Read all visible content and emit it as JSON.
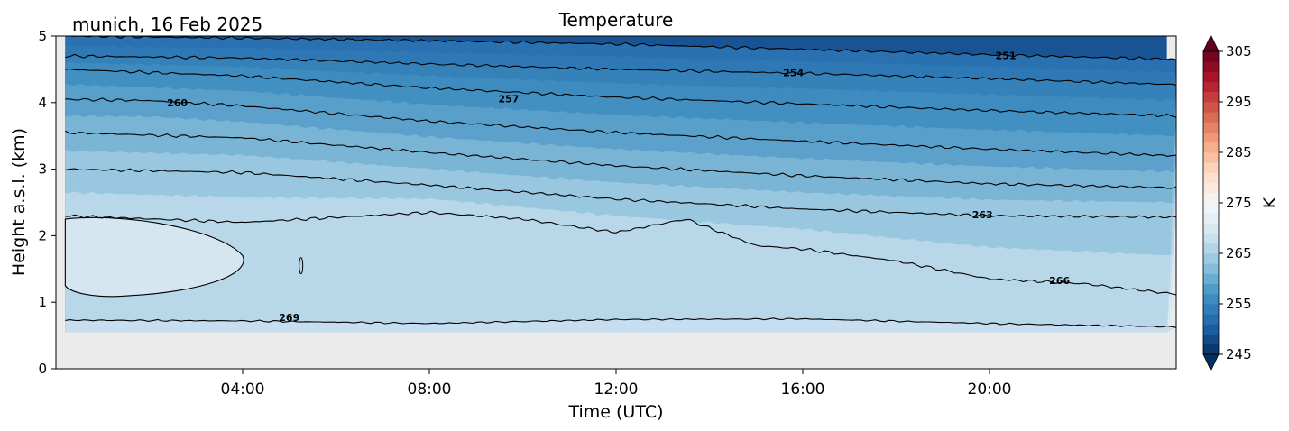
{
  "chart_data": {
    "type": "heatmap",
    "title": "Temperature",
    "subtitle": "munich, 16 Feb 2025",
    "xlabel": "Time (UTC)",
    "ylabel": "Height a.s.l. (km)",
    "xlim": [
      0,
      24
    ],
    "ylim": [
      0,
      5
    ],
    "x_ticks": [
      4,
      8,
      12,
      16,
      20
    ],
    "x_tick_labels": [
      "04:00",
      "08:00",
      "12:00",
      "16:00",
      "20:00"
    ],
    "y_ticks": [
      0,
      1,
      2,
      3,
      4,
      5
    ],
    "y_tick_labels": [
      "0",
      "1",
      "2",
      "3",
      "4",
      "5"
    ],
    "data_bottom_km": 0.55,
    "colorbar": {
      "label": "K",
      "range": [
        245,
        305
      ],
      "step": 2,
      "extend": "both",
      "ticks": [
        245,
        255,
        265,
        275,
        285,
        295,
        305
      ],
      "tick_labels": [
        "245",
        "255",
        "265",
        "275",
        "285",
        "295",
        "305"
      ],
      "colormap": "RdBu_r"
    },
    "contour_levels": [
      251,
      254,
      257,
      260,
      263,
      266,
      269
    ],
    "contour_labels": [
      {
        "text": "251",
        "x_hours": 20.35,
        "height_km": 4.71
      },
      {
        "text": "254",
        "x_hours": 15.8,
        "height_km": 4.45
      },
      {
        "text": "257",
        "x_hours": 9.7,
        "height_km": 4.06
      },
      {
        "text": "260",
        "x_hours": 2.6,
        "height_km": 4.0
      },
      {
        "text": "263",
        "x_hours": 19.85,
        "height_km": 2.32
      },
      {
        "text": "266",
        "x_hours": 21.5,
        "height_km": 1.33
      },
      {
        "text": "269",
        "x_hours": 5.0,
        "height_km": 0.77
      }
    ],
    "isotherms": [
      {
        "level": 251,
        "x_hours": [
          0.2,
          4,
          8,
          12,
          16,
          20,
          24
        ],
        "height_km": [
          5.0,
          4.97,
          4.93,
          4.88,
          4.8,
          4.72,
          4.65
        ]
      },
      {
        "level": 254,
        "x_hours": [
          0.2,
          4,
          8,
          12,
          16,
          20,
          24
        ],
        "height_km": [
          4.7,
          4.67,
          4.58,
          4.5,
          4.44,
          4.36,
          4.27
        ]
      },
      {
        "level": 257,
        "x_hours": [
          0.2,
          4,
          8,
          12,
          16,
          20,
          24
        ],
        "height_km": [
          4.5,
          4.4,
          4.22,
          4.08,
          3.98,
          3.88,
          3.8
        ]
      },
      {
        "level": 260,
        "x_hours": [
          0.2,
          2,
          4,
          8,
          12,
          16,
          20,
          24
        ],
        "height_km": [
          4.05,
          4.03,
          3.95,
          3.72,
          3.55,
          3.42,
          3.3,
          3.2
        ]
      },
      {
        "level": 263,
        "x_hours": [
          0.2,
          4,
          8,
          12,
          16,
          20,
          24
        ],
        "height_km": [
          3.55,
          3.47,
          3.25,
          3.05,
          2.9,
          2.78,
          2.72
        ]
      },
      {
        "level": 266,
        "x_hours": [
          0.2,
          4,
          8,
          12,
          16,
          20,
          24
        ],
        "height_km": [
          3.0,
          2.95,
          2.76,
          2.55,
          2.4,
          2.3,
          2.28
        ]
      },
      {
        "level": 269,
        "x_hours": [
          0.2,
          4,
          8,
          10,
          12,
          13.5,
          15,
          16,
          18,
          20,
          22,
          24
        ],
        "height_km": [
          2.3,
          2.2,
          2.35,
          2.25,
          2.05,
          2.25,
          1.85,
          1.8,
          1.62,
          1.35,
          1.28,
          1.12
        ]
      },
      {
        "level": 269,
        "x_hours": [
          0.2,
          4,
          8,
          12,
          16,
          20,
          24
        ],
        "height_km": [
          0.73,
          0.72,
          0.68,
          0.74,
          0.75,
          0.68,
          0.63
        ]
      }
    ]
  }
}
